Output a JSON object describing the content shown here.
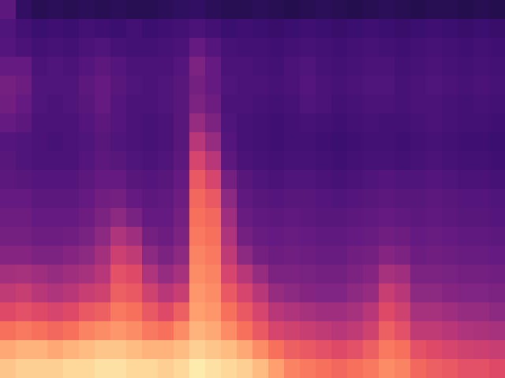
{
  "chart_data": {
    "type": "heatmap",
    "tick_labels": false,
    "zlim": [
      0,
      1
    ],
    "cells": [
      [
        0.28,
        0.18,
        0.15,
        0.16,
        0.15,
        0.16,
        0.15,
        0.16,
        0.15,
        0.15,
        0.16,
        0.17,
        0.18,
        0.16,
        0.15,
        0.15,
        0.16,
        0.15,
        0.14,
        0.15,
        0.16,
        0.15,
        0.14,
        0.15,
        0.16,
        0.15,
        0.14,
        0.15,
        0.15,
        0.14,
        0.15,
        0.14
      ],
      [
        0.25,
        0.22,
        0.2,
        0.21,
        0.2,
        0.22,
        0.21,
        0.2,
        0.22,
        0.2,
        0.21,
        0.22,
        0.24,
        0.22,
        0.2,
        0.21,
        0.2,
        0.19,
        0.2,
        0.21,
        0.2,
        0.19,
        0.2,
        0.21,
        0.2,
        0.19,
        0.2,
        0.21,
        0.2,
        0.19,
        0.2,
        0.19
      ],
      [
        0.26,
        0.24,
        0.22,
        0.23,
        0.22,
        0.24,
        0.25,
        0.23,
        0.22,
        0.22,
        0.23,
        0.24,
        0.3,
        0.26,
        0.23,
        0.22,
        0.22,
        0.21,
        0.22,
        0.23,
        0.22,
        0.21,
        0.22,
        0.23,
        0.22,
        0.21,
        0.22,
        0.23,
        0.22,
        0.21,
        0.22,
        0.21
      ],
      [
        0.3,
        0.3,
        0.24,
        0.25,
        0.24,
        0.26,
        0.28,
        0.26,
        0.24,
        0.24,
        0.24,
        0.26,
        0.36,
        0.3,
        0.24,
        0.24,
        0.23,
        0.22,
        0.24,
        0.25,
        0.23,
        0.22,
        0.23,
        0.24,
        0.24,
        0.22,
        0.23,
        0.24,
        0.23,
        0.22,
        0.23,
        0.22
      ],
      [
        0.34,
        0.32,
        0.25,
        0.25,
        0.25,
        0.28,
        0.3,
        0.27,
        0.25,
        0.24,
        0.25,
        0.27,
        0.34,
        0.3,
        0.25,
        0.24,
        0.24,
        0.23,
        0.24,
        0.26,
        0.24,
        0.23,
        0.24,
        0.25,
        0.25,
        0.23,
        0.24,
        0.25,
        0.24,
        0.23,
        0.24,
        0.23
      ],
      [
        0.33,
        0.3,
        0.25,
        0.24,
        0.25,
        0.27,
        0.3,
        0.26,
        0.24,
        0.24,
        0.25,
        0.27,
        0.36,
        0.32,
        0.24,
        0.24,
        0.23,
        0.22,
        0.23,
        0.25,
        0.24,
        0.22,
        0.23,
        0.24,
        0.24,
        0.23,
        0.24,
        0.24,
        0.23,
        0.22,
        0.23,
        0.22
      ],
      [
        0.3,
        0.28,
        0.24,
        0.24,
        0.24,
        0.26,
        0.28,
        0.26,
        0.24,
        0.23,
        0.24,
        0.27,
        0.42,
        0.36,
        0.25,
        0.23,
        0.22,
        0.21,
        0.22,
        0.23,
        0.22,
        0.21,
        0.22,
        0.23,
        0.22,
        0.22,
        0.23,
        0.24,
        0.23,
        0.22,
        0.22,
        0.21
      ],
      [
        0.26,
        0.25,
        0.24,
        0.23,
        0.24,
        0.25,
        0.27,
        0.25,
        0.24,
        0.23,
        0.24,
        0.27,
        0.5,
        0.42,
        0.26,
        0.23,
        0.22,
        0.21,
        0.22,
        0.22,
        0.21,
        0.2,
        0.21,
        0.22,
        0.22,
        0.21,
        0.22,
        0.23,
        0.22,
        0.21,
        0.21,
        0.2
      ],
      [
        0.27,
        0.25,
        0.24,
        0.24,
        0.24,
        0.26,
        0.28,
        0.27,
        0.25,
        0.24,
        0.25,
        0.28,
        0.58,
        0.5,
        0.28,
        0.24,
        0.23,
        0.22,
        0.23,
        0.23,
        0.22,
        0.21,
        0.22,
        0.23,
        0.23,
        0.22,
        0.23,
        0.24,
        0.23,
        0.22,
        0.22,
        0.21
      ],
      [
        0.28,
        0.27,
        0.26,
        0.26,
        0.26,
        0.28,
        0.3,
        0.3,
        0.27,
        0.26,
        0.27,
        0.3,
        0.64,
        0.58,
        0.34,
        0.27,
        0.25,
        0.24,
        0.25,
        0.25,
        0.24,
        0.23,
        0.24,
        0.25,
        0.26,
        0.25,
        0.25,
        0.26,
        0.25,
        0.24,
        0.24,
        0.23
      ],
      [
        0.3,
        0.3,
        0.28,
        0.28,
        0.28,
        0.3,
        0.33,
        0.34,
        0.3,
        0.28,
        0.29,
        0.32,
        0.68,
        0.64,
        0.4,
        0.29,
        0.27,
        0.26,
        0.27,
        0.27,
        0.26,
        0.25,
        0.26,
        0.27,
        0.28,
        0.27,
        0.27,
        0.28,
        0.27,
        0.26,
        0.26,
        0.25
      ],
      [
        0.32,
        0.32,
        0.3,
        0.3,
        0.3,
        0.32,
        0.36,
        0.4,
        0.35,
        0.3,
        0.3,
        0.34,
        0.7,
        0.68,
        0.44,
        0.31,
        0.29,
        0.28,
        0.29,
        0.28,
        0.27,
        0.27,
        0.28,
        0.29,
        0.3,
        0.29,
        0.28,
        0.29,
        0.28,
        0.27,
        0.27,
        0.26
      ],
      [
        0.34,
        0.34,
        0.32,
        0.32,
        0.33,
        0.35,
        0.4,
        0.48,
        0.44,
        0.34,
        0.32,
        0.36,
        0.72,
        0.7,
        0.48,
        0.34,
        0.31,
        0.3,
        0.31,
        0.3,
        0.29,
        0.29,
        0.3,
        0.31,
        0.33,
        0.32,
        0.3,
        0.31,
        0.3,
        0.29,
        0.29,
        0.28
      ],
      [
        0.38,
        0.38,
        0.36,
        0.36,
        0.38,
        0.4,
        0.45,
        0.55,
        0.52,
        0.4,
        0.36,
        0.4,
        0.74,
        0.72,
        0.52,
        0.4,
        0.34,
        0.32,
        0.33,
        0.32,
        0.31,
        0.31,
        0.33,
        0.34,
        0.38,
        0.36,
        0.32,
        0.33,
        0.32,
        0.31,
        0.31,
        0.3
      ],
      [
        0.45,
        0.46,
        0.44,
        0.42,
        0.44,
        0.46,
        0.5,
        0.62,
        0.6,
        0.48,
        0.42,
        0.46,
        0.76,
        0.74,
        0.58,
        0.5,
        0.42,
        0.36,
        0.36,
        0.35,
        0.34,
        0.34,
        0.36,
        0.38,
        0.46,
        0.44,
        0.36,
        0.36,
        0.35,
        0.34,
        0.34,
        0.33
      ],
      [
        0.52,
        0.54,
        0.5,
        0.48,
        0.5,
        0.54,
        0.56,
        0.66,
        0.64,
        0.56,
        0.5,
        0.54,
        0.78,
        0.76,
        0.64,
        0.58,
        0.5,
        0.42,
        0.4,
        0.38,
        0.37,
        0.37,
        0.4,
        0.42,
        0.54,
        0.5,
        0.4,
        0.4,
        0.38,
        0.37,
        0.37,
        0.36
      ],
      [
        0.6,
        0.62,
        0.6,
        0.58,
        0.6,
        0.64,
        0.66,
        0.72,
        0.7,
        0.64,
        0.6,
        0.66,
        0.8,
        0.78,
        0.7,
        0.64,
        0.58,
        0.5,
        0.48,
        0.46,
        0.44,
        0.44,
        0.46,
        0.5,
        0.6,
        0.56,
        0.46,
        0.46,
        0.44,
        0.42,
        0.42,
        0.4
      ],
      [
        0.7,
        0.72,
        0.7,
        0.68,
        0.7,
        0.74,
        0.76,
        0.78,
        0.76,
        0.72,
        0.7,
        0.76,
        0.84,
        0.82,
        0.76,
        0.7,
        0.64,
        0.58,
        0.56,
        0.54,
        0.52,
        0.5,
        0.52,
        0.56,
        0.66,
        0.62,
        0.52,
        0.52,
        0.5,
        0.48,
        0.47,
        0.46
      ],
      [
        0.82,
        0.84,
        0.84,
        0.82,
        0.84,
        0.86,
        0.88,
        0.88,
        0.86,
        0.84,
        0.84,
        0.86,
        0.9,
        0.88,
        0.86,
        0.82,
        0.76,
        0.7,
        0.66,
        0.64,
        0.62,
        0.6,
        0.62,
        0.66,
        0.72,
        0.7,
        0.62,
        0.6,
        0.58,
        0.56,
        0.55,
        0.54
      ],
      [
        0.88,
        0.9,
        0.9,
        0.9,
        0.92,
        0.92,
        0.94,
        0.94,
        0.92,
        0.92,
        0.9,
        0.92,
        0.96,
        0.94,
        0.92,
        0.9,
        0.86,
        0.8,
        0.74,
        0.72,
        0.7,
        0.68,
        0.7,
        0.72,
        0.76,
        0.74,
        0.68,
        0.66,
        0.64,
        0.62,
        0.62,
        0.6
      ]
    ]
  }
}
